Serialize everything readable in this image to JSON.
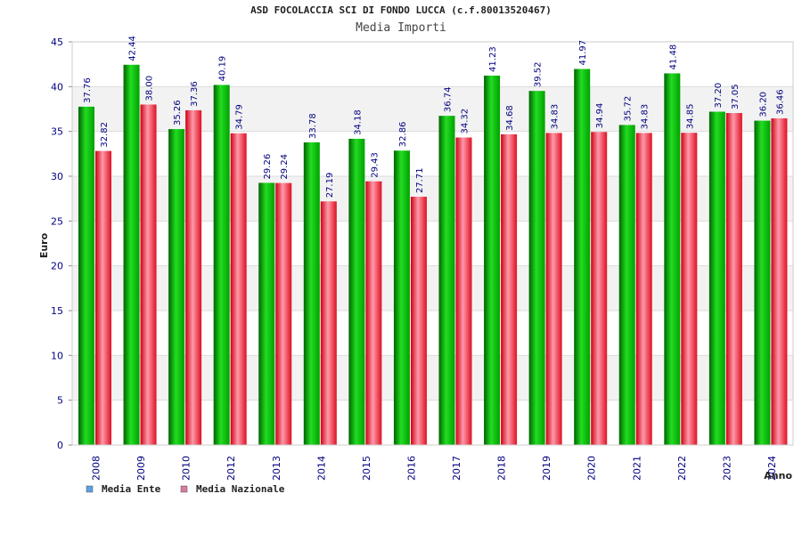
{
  "chart_data": {
    "type": "bar",
    "title": "ASD FOCOLACCIA SCI DI FONDO LUCCA (c.f.80013520467)",
    "subtitle": "Media Importi",
    "ylabel": "Euro",
    "xlabel": "Anno",
    "ylim": [
      0,
      45
    ],
    "yticks": [
      0,
      5,
      10,
      15,
      20,
      25,
      30,
      35,
      40,
      45
    ],
    "grid": true,
    "legend_position": "bottom-left",
    "categories": [
      "2008",
      "2009",
      "2010",
      "2012",
      "2013",
      "2014",
      "2015",
      "2016",
      "2017",
      "2018",
      "2019",
      "2020",
      "2021",
      "2022",
      "2023",
      "2024"
    ],
    "series": [
      {
        "name": "Media Ente",
        "color": "#00bb00",
        "legend_color": "#5aa0e6",
        "values": [
          37.76,
          42.44,
          35.26,
          40.19,
          29.26,
          33.78,
          34.18,
          32.86,
          36.74,
          41.23,
          39.52,
          41.97,
          35.72,
          41.48,
          37.2,
          36.2
        ]
      },
      {
        "name": "Media Nazionale",
        "color": "#ee2233",
        "legend_color": "#d97aa0",
        "values": [
          32.82,
          38.0,
          37.36,
          34.79,
          29.24,
          27.19,
          29.43,
          27.71,
          34.32,
          34.68,
          34.83,
          34.94,
          34.83,
          34.85,
          37.05,
          36.46
        ]
      }
    ],
    "colors": {
      "axis_text": "#000080",
      "label_text": "#000080",
      "band_light": "#ffffff",
      "band_dark": "#f2f2f2",
      "grid": "#dcdcdc"
    }
  }
}
